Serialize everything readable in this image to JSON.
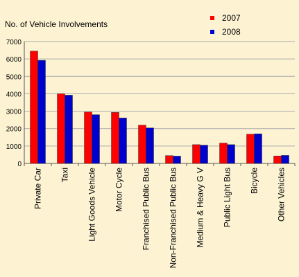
{
  "chart_data": {
    "type": "bar",
    "title": "No. of Vehicle Involvements",
    "categories": [
      "Private Car",
      "Taxi",
      "Light Goods Vehicle",
      "Motor Cycle",
      "Franchised Public Bus",
      "Non-Franchised Public Bus",
      "Medium & Heavy G V",
      "Public Light Bus",
      "Bicycle",
      "Other Vehicles"
    ],
    "series": [
      {
        "name": "2007",
        "color": "#ff0000",
        "values": [
          6450,
          4000,
          2950,
          2930,
          2200,
          450,
          1080,
          1170,
          1680,
          430
        ]
      },
      {
        "name": "2008",
        "color": "#0000cc",
        "values": [
          5920,
          3920,
          2800,
          2610,
          2040,
          420,
          1050,
          1080,
          1700,
          460
        ]
      }
    ],
    "ylim": [
      0,
      7000
    ],
    "yticks": [
      0,
      1000,
      2000,
      3000,
      4000,
      5000,
      6000,
      7000
    ],
    "grid": true,
    "legend_position": "top-right"
  }
}
